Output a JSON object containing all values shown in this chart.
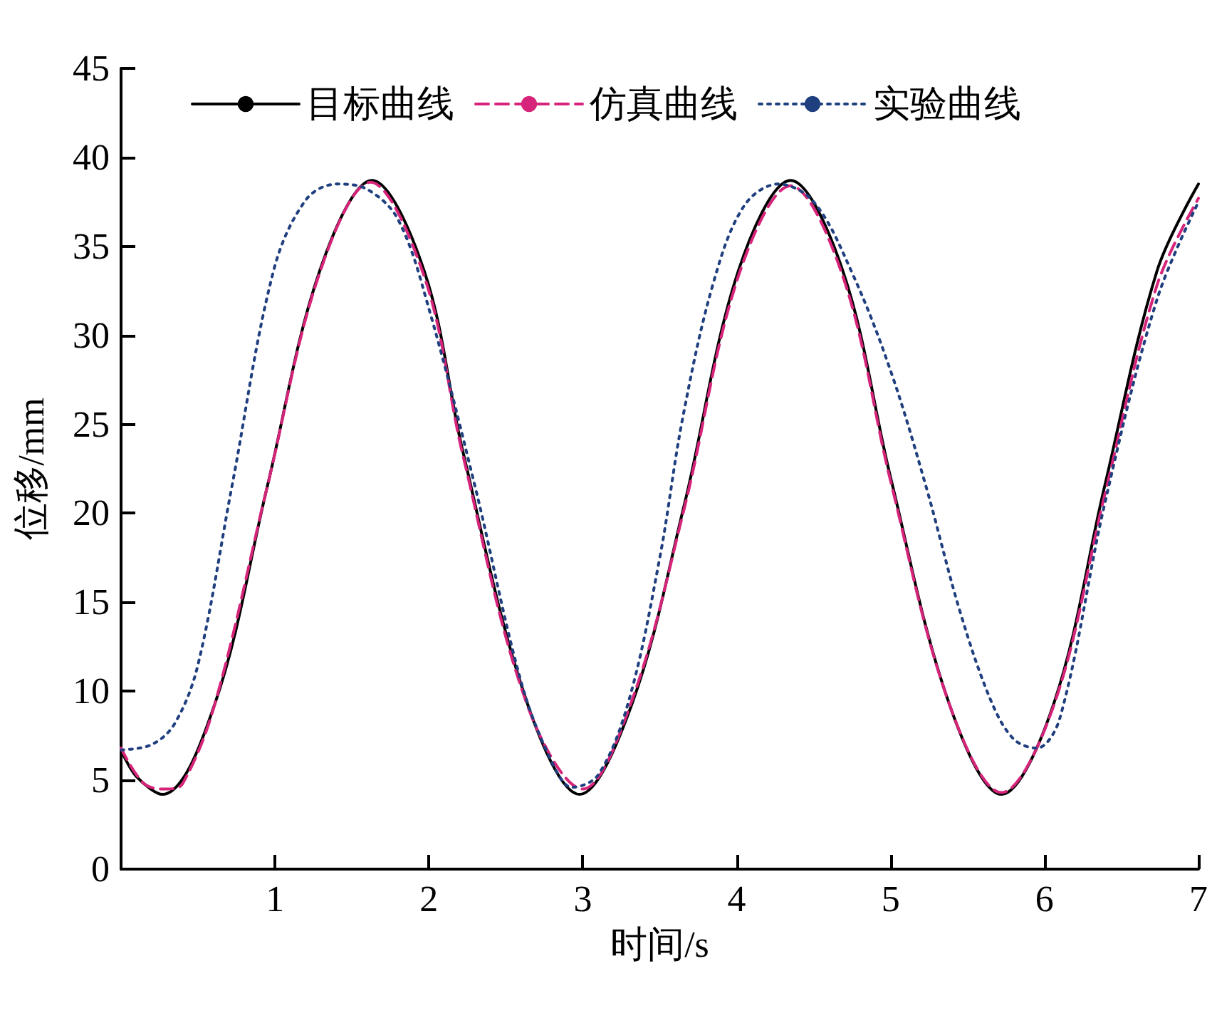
{
  "chart_data": {
    "type": "line",
    "xlabel": "时间/s",
    "ylabel": "位移/mm",
    "xlim": [
      0,
      7
    ],
    "ylim": [
      0,
      45
    ],
    "xticks": [
      1,
      2,
      3,
      4,
      5,
      6,
      7
    ],
    "yticks": [
      0,
      5,
      10,
      15,
      20,
      25,
      30,
      35,
      40,
      45
    ],
    "grid": false,
    "legend": "top",
    "marker": "none",
    "series": [
      {
        "name": "目标曲线",
        "color": "#000000",
        "line_style": "solid",
        "x": [
          0,
          0.1,
          0.27,
          0.61,
          0.95,
          1.29,
          1.63,
          1.97,
          2.22,
          2.64,
          2.98,
          3.32,
          3.66,
          4.01,
          4.35,
          4.69,
          5.0,
          5.38,
          5.72,
          6.06,
          6.39,
          6.73,
          7
        ],
        "values": [
          6.7,
          5.2,
          4.2,
          9.3,
          21.5,
          33.6,
          38.7,
          33.6,
          23.5,
          9.3,
          4.2,
          9.3,
          20.5,
          33.6,
          38.7,
          33.6,
          22.0,
          9.3,
          4.2,
          9.3,
          21.5,
          33.6,
          38.5
        ]
      },
      {
        "name": "仿真曲线",
        "color": "#d6247a",
        "line_style": "dashed",
        "x": [
          0,
          0.15,
          0.3,
          0.4,
          0.61,
          0.95,
          1.29,
          1.62,
          1.97,
          2.22,
          2.64,
          3.0,
          3.32,
          3.66,
          4.01,
          4.35,
          4.69,
          5.0,
          5.38,
          5.72,
          6.06,
          6.39,
          6.73,
          7
        ],
        "values": [
          6.8,
          4.8,
          4.5,
          4.8,
          9.3,
          21.5,
          33.5,
          38.6,
          33.3,
          23.3,
          9.2,
          4.5,
          9.5,
          20.3,
          33.3,
          38.4,
          33.3,
          21.8,
          9.3,
          4.3,
          9.2,
          21.0,
          32.8,
          37.7
        ]
      },
      {
        "name": "实验曲线",
        "color": "#1f3f7f",
        "line_style": "dotted",
        "x": [
          0,
          0.2,
          0.35,
          0.5,
          0.72,
          0.99,
          1.2,
          1.4,
          1.6,
          1.8,
          2.0,
          2.3,
          2.6,
          2.8,
          2.93,
          3.1,
          3.3,
          3.5,
          3.65,
          3.85,
          4.05,
          4.27,
          4.5,
          4.75,
          5.0,
          5.23,
          5.45,
          5.65,
          5.8,
          5.95,
          6.1,
          6.39,
          6.73,
          7
        ],
        "values": [
          6.7,
          7.0,
          8.2,
          11.5,
          21.5,
          33.6,
          37.6,
          38.5,
          38.2,
          36.5,
          31.5,
          21.5,
          10.5,
          6.0,
          4.6,
          5.3,
          9.5,
          17.5,
          25.4,
          33.0,
          37.3,
          38.5,
          37.5,
          33.5,
          28.0,
          21.5,
          14.5,
          9.5,
          7.3,
          6.8,
          8.5,
          20.5,
          32.0,
          37.5
        ]
      }
    ]
  }
}
